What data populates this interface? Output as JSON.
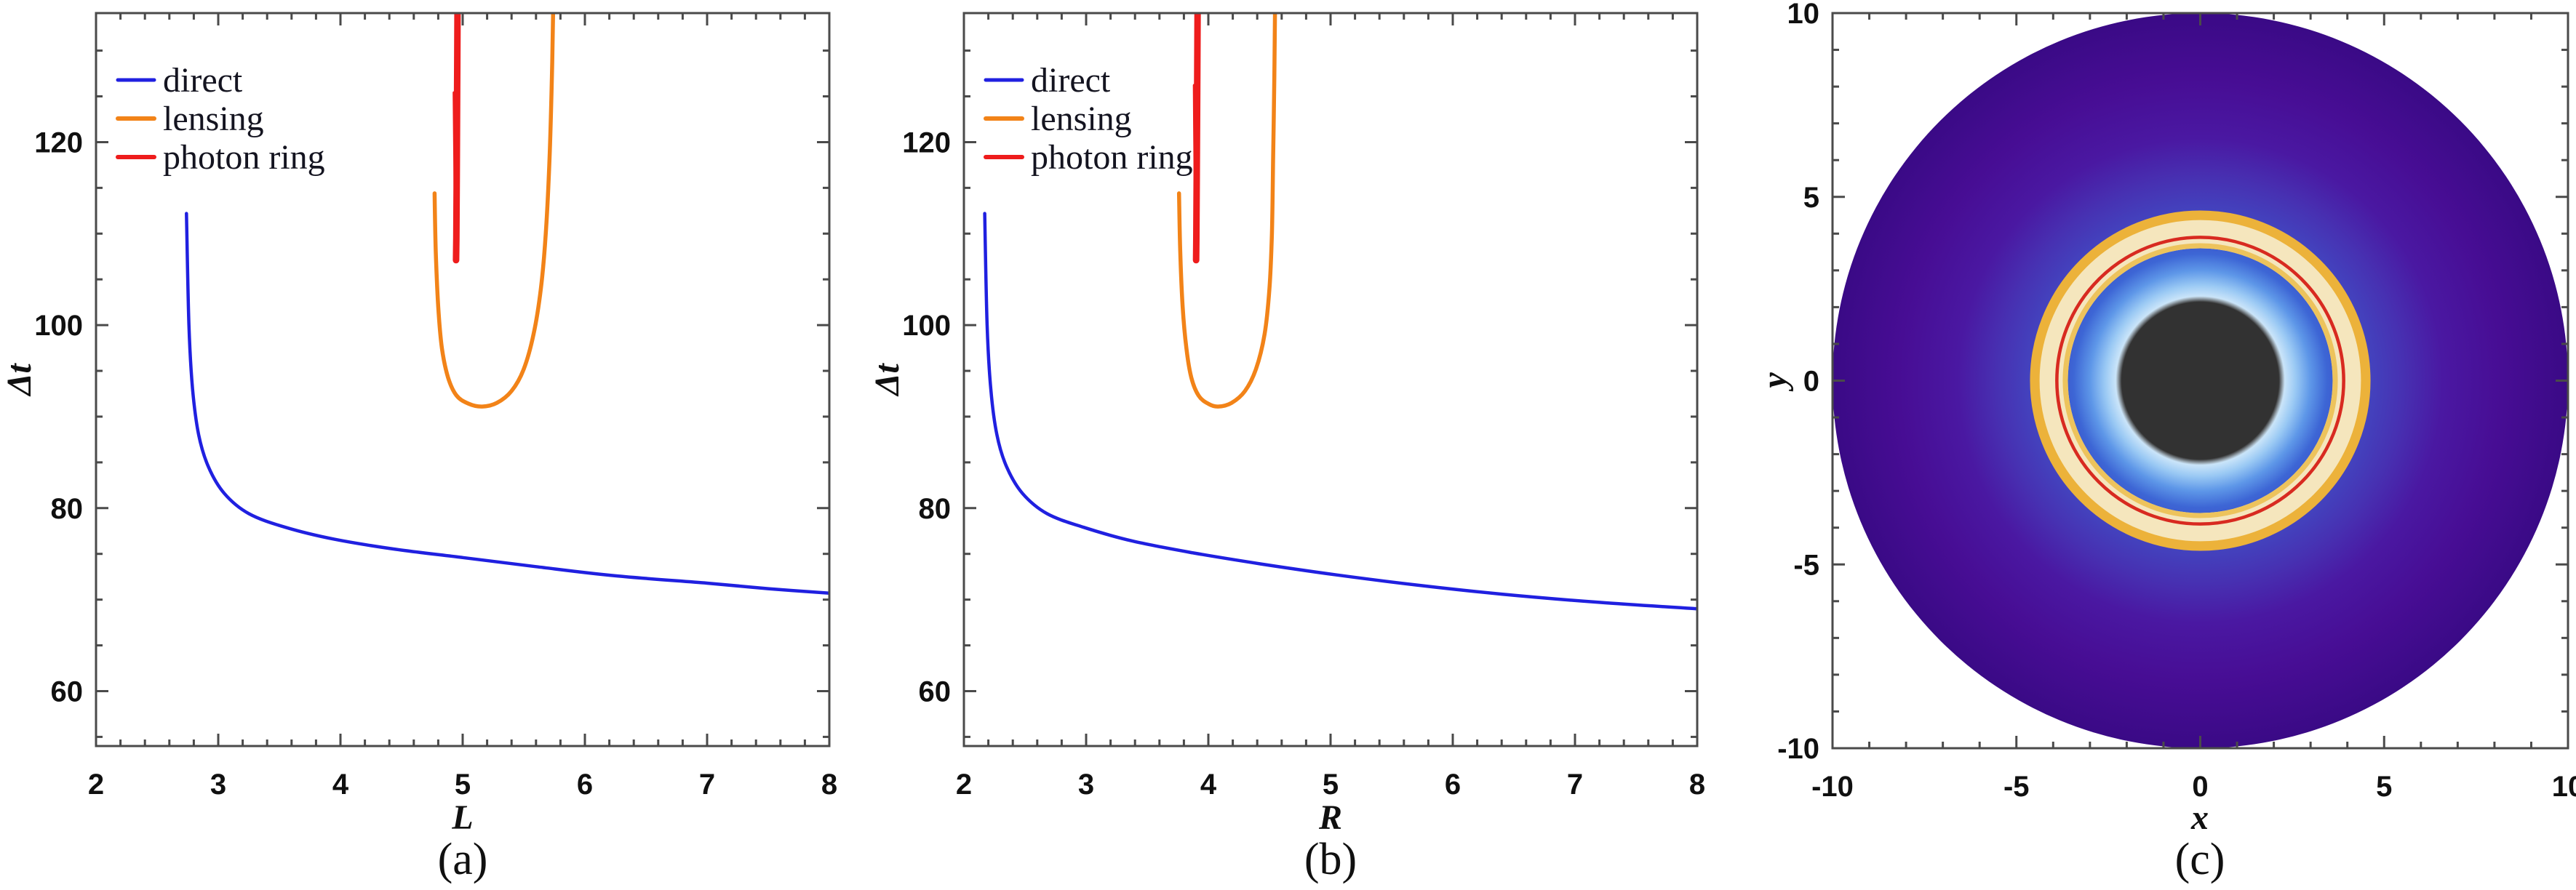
{
  "page": {
    "background": "#ffffff"
  },
  "panels": {
    "a": {
      "caption": "(a)",
      "xlabel": "L",
      "ylabel": "Δt"
    },
    "b": {
      "caption": "(b)",
      "xlabel": "R",
      "ylabel": "Δt"
    },
    "c": {
      "caption": "(c)",
      "xlabel": "x",
      "ylabel": "y"
    }
  },
  "legend": {
    "items": [
      {
        "label": "direct",
        "color": "#2020E0"
      },
      {
        "label": "lensing",
        "color": "#F28318"
      },
      {
        "label": "photon ring",
        "color": "#EE1C1C"
      }
    ]
  },
  "chart_data": [
    {
      "id": "a",
      "type": "line",
      "xlabel": "L",
      "ylabel": "Δt",
      "xlim": [
        2,
        8
      ],
      "ylim": [
        54,
        134.1
      ],
      "xticks": [
        2,
        3,
        4,
        5,
        6,
        7,
        8
      ],
      "xtick_labels": [
        "2",
        "3",
        "4",
        "5",
        "6",
        "7",
        "8"
      ],
      "x_minor_step": 0.2,
      "yticks": [
        60,
        80,
        100,
        120
      ],
      "ytick_labels": [
        "60",
        "80",
        "100",
        "120"
      ],
      "y_minor_step": 5,
      "legend_position": "top-left-inside",
      "grid": false,
      "series": [
        {
          "name": "direct",
          "color": "#2020E0",
          "width": 4.5,
          "points": [
            [
              2.74,
              112.2
            ],
            [
              2.76,
              100
            ],
            [
              2.79,
              93
            ],
            [
              2.84,
              88
            ],
            [
              2.92,
              84.5
            ],
            [
              3.05,
              81.6
            ],
            [
              3.25,
              79.4
            ],
            [
              3.55,
              77.9
            ],
            [
              3.95,
              76.6
            ],
            [
              4.45,
              75.5
            ],
            [
              5.0,
              74.6
            ],
            [
              5.6,
              73.6
            ],
            [
              6.25,
              72.6
            ],
            [
              7.0,
              71.8
            ],
            [
              7.5,
              71.2
            ],
            [
              8.0,
              70.7
            ]
          ]
        },
        {
          "name": "lensing",
          "color": "#F28318",
          "width": 5.5,
          "points": [
            [
              4.77,
              114.4
            ],
            [
              4.78,
              108
            ],
            [
              4.8,
              102
            ],
            [
              4.83,
              97.5
            ],
            [
              4.88,
              94.3
            ],
            [
              4.95,
              92.3
            ],
            [
              5.05,
              91.4
            ],
            [
              5.16,
              91.1
            ],
            [
              5.28,
              91.5
            ],
            [
              5.4,
              92.8
            ],
            [
              5.5,
              95.2
            ],
            [
              5.58,
              99
            ],
            [
              5.64,
              104
            ],
            [
              5.68,
              110
            ],
            [
              5.71,
              118
            ],
            [
              5.73,
              127
            ],
            [
              5.74,
              134.1
            ]
          ]
        },
        {
          "name": "photon ring",
          "color": "#EE1C1C",
          "width": 9,
          "points": [
            [
              4.958,
              134.1
            ],
            [
              4.955,
              126
            ],
            [
              4.951,
              116
            ],
            [
              4.948,
              109.5
            ],
            [
              4.946,
              107.1
            ]
          ]
        },
        {
          "name": "photon ring inner branch",
          "color": "#EE1C1C",
          "width": 4,
          "points": [
            [
              4.93,
              125.4
            ],
            [
              4.935,
              118
            ],
            [
              4.94,
              112
            ],
            [
              4.944,
              108.3
            ]
          ]
        }
      ]
    },
    {
      "id": "b",
      "type": "line",
      "xlabel": "R",
      "ylabel": "Δt",
      "xlim": [
        2,
        8
      ],
      "ylim": [
        54,
        134.1
      ],
      "xticks": [
        2,
        3,
        4,
        5,
        6,
        7,
        8
      ],
      "xtick_labels": [
        "2",
        "3",
        "4",
        "5",
        "6",
        "7",
        "8"
      ],
      "x_minor_step": 0.2,
      "yticks": [
        60,
        80,
        100,
        120
      ],
      "ytick_labels": [
        "60",
        "80",
        "100",
        "120"
      ],
      "y_minor_step": 5,
      "legend_position": "top-left-inside",
      "grid": false,
      "series": [
        {
          "name": "direct",
          "color": "#2020E0",
          "width": 4.5,
          "points": [
            [
              2.17,
              112.2
            ],
            [
              2.19,
              100
            ],
            [
              2.22,
              93
            ],
            [
              2.27,
              88
            ],
            [
              2.35,
              84.5
            ],
            [
              2.48,
              81.6
            ],
            [
              2.68,
              79.4
            ],
            [
              2.98,
              77.9
            ],
            [
              3.38,
              76.4
            ],
            [
              3.88,
              75.1
            ],
            [
              4.43,
              73.9
            ],
            [
              5.05,
              72.7
            ],
            [
              5.7,
              71.6
            ],
            [
              6.4,
              70.6
            ],
            [
              7.2,
              69.7
            ],
            [
              8.0,
              69.0
            ]
          ]
        },
        {
          "name": "lensing",
          "color": "#F28318",
          "width": 5.5,
          "points": [
            [
              3.76,
              114.4
            ],
            [
              3.77,
              108
            ],
            [
              3.79,
              102
            ],
            [
              3.82,
              97.5
            ],
            [
              3.86,
              94.3
            ],
            [
              3.92,
              92.3
            ],
            [
              4.0,
              91.4
            ],
            [
              4.08,
              91.1
            ],
            [
              4.19,
              91.5
            ],
            [
              4.3,
              92.8
            ],
            [
              4.39,
              95.2
            ],
            [
              4.46,
              99
            ],
            [
              4.5,
              104
            ],
            [
              4.52,
              110
            ],
            [
              4.53,
              118
            ],
            [
              4.54,
              127
            ],
            [
              4.545,
              134.1
            ]
          ]
        },
        {
          "name": "photon ring",
          "color": "#EE1C1C",
          "width": 9,
          "points": [
            [
              3.912,
              134.1
            ],
            [
              3.909,
              126
            ],
            [
              3.905,
              116
            ],
            [
              3.902,
              109.5
            ],
            [
              3.9,
              107.1
            ]
          ]
        },
        {
          "name": "photon ring inner branch",
          "color": "#EE1C1C",
          "width": 4,
          "points": [
            [
              3.885,
              126.2
            ],
            [
              3.89,
              118
            ],
            [
              3.895,
              112
            ],
            [
              3.898,
              108.3
            ]
          ]
        }
      ]
    },
    {
      "id": "c",
      "type": "shadow_image",
      "xlabel": "x",
      "ylabel": "y",
      "xlim": [
        -10,
        10
      ],
      "ylim": [
        -10,
        10
      ],
      "xticks": [
        -10,
        -5,
        0,
        5,
        10
      ],
      "xtick_labels": [
        "-10",
        "-5",
        "0",
        "5",
        "10"
      ],
      "yticks": [
        -10,
        -5,
        0,
        5,
        10
      ],
      "ytick_labels": [
        "-10",
        "-5",
        "0",
        "5",
        "10"
      ],
      "minor_step": 1,
      "disk_outer_radius": 10,
      "black_disk_radius": 2.2,
      "photon_ring_radius": 3.9,
      "lensing_band_radii": [
        3.6,
        4.6
      ],
      "gradient_stops": [
        [
          0.0,
          "#FFFFFF"
        ],
        [
          0.195,
          "#EDF6FE"
        ],
        [
          0.225,
          "#D2E9FA"
        ],
        [
          0.26,
          "#9AC9F4"
        ],
        [
          0.3,
          "#5E97E8"
        ],
        [
          0.345,
          "#3D66D5"
        ],
        [
          0.4,
          "#3C50C7"
        ],
        [
          0.46,
          "#4343BE"
        ],
        [
          0.55,
          "#4731B2"
        ],
        [
          0.66,
          "#4A18A2"
        ],
        [
          0.82,
          "#470D94"
        ],
        [
          1.0,
          "#3A0A86"
        ]
      ],
      "band": {
        "cream_color": "#F5E6BD",
        "gold_color": "#ECB23A",
        "inner_gold_color": "#EDC35C",
        "red_color": "#D82A20",
        "black_color": "#323232"
      }
    }
  ]
}
